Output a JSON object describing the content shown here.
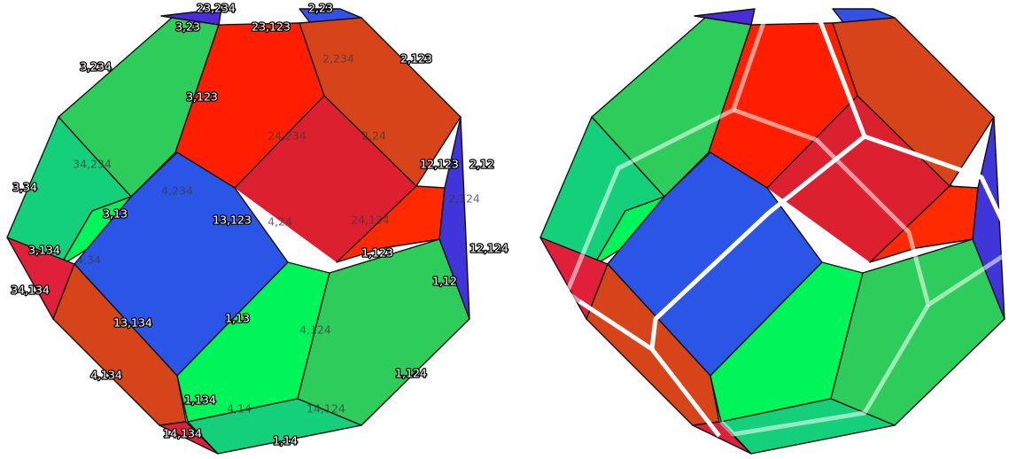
{
  "colors": {
    "red": "#ff1f00",
    "orange": "#d8441a",
    "crimson": "#dc2030",
    "green": "#2ecc5a",
    "teal": "#14d07a",
    "lime": "#00f55a",
    "blue": "#2a55e6",
    "indigo": "#4a2cd8"
  },
  "left_diagram": {
    "labels": [
      {
        "text": "23,234"
      },
      {
        "text": "2,23"
      },
      {
        "text": "3,23"
      },
      {
        "text": "23,123"
      },
      {
        "text": "2,234"
      },
      {
        "text": "2,123"
      },
      {
        "text": "3,234"
      },
      {
        "text": "3,123"
      },
      {
        "text": "24,234"
      },
      {
        "text": "2,24"
      },
      {
        "text": "34,234"
      },
      {
        "text": "12,123"
      },
      {
        "text": "2,12"
      },
      {
        "text": "3,34"
      },
      {
        "text": "4,234"
      },
      {
        "text": "2,124"
      },
      {
        "text": "3,13"
      },
      {
        "text": "13,123"
      },
      {
        "text": "4,24"
      },
      {
        "text": "24,124"
      },
      {
        "text": "12,124"
      },
      {
        "text": "3,134"
      },
      {
        "text": "4,34"
      },
      {
        "text": "1,123"
      },
      {
        "text": "34,134"
      },
      {
        "text": "1,12"
      },
      {
        "text": "13,134"
      },
      {
        "text": "1,13"
      },
      {
        "text": "4,124"
      },
      {
        "text": "4,134"
      },
      {
        "text": "1,124"
      },
      {
        "text": "1,134"
      },
      {
        "text": "4,14"
      },
      {
        "text": "14,124"
      },
      {
        "text": "14,134"
      },
      {
        "text": "1,14"
      }
    ]
  }
}
